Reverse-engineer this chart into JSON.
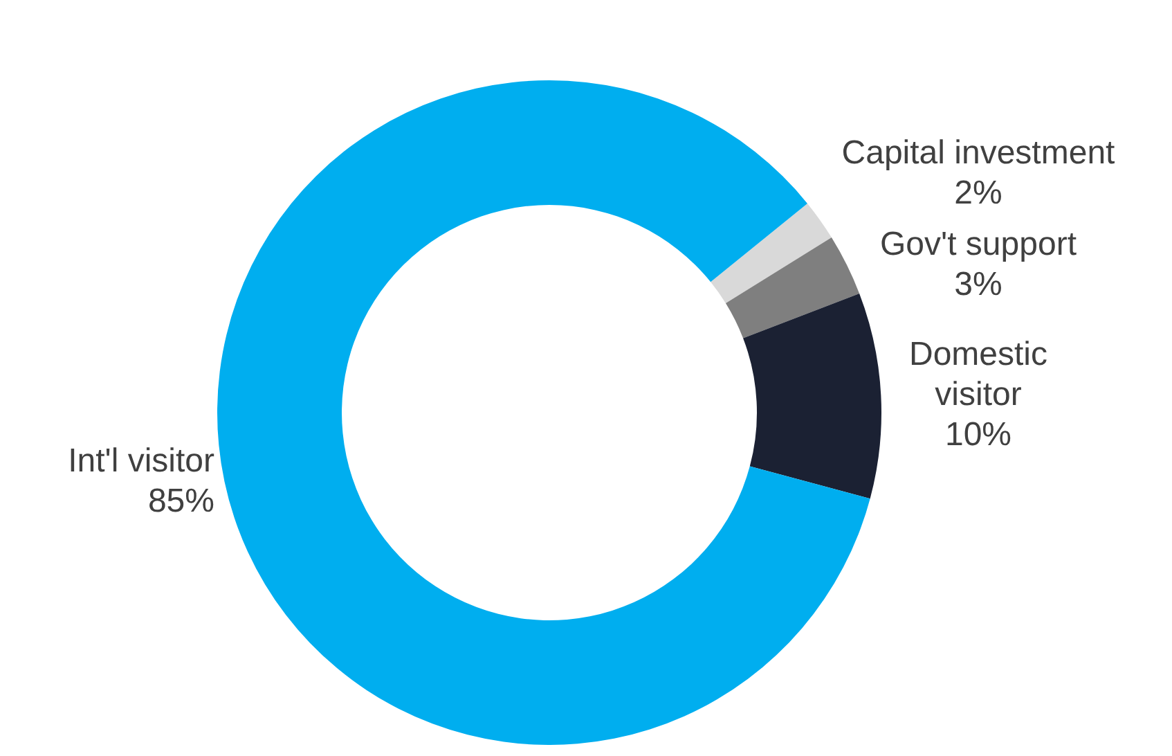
{
  "chart_data": {
    "type": "donut",
    "categories": [
      "Capital investment",
      "Gov't support",
      "Domestic visitor",
      "Int'l visitor"
    ],
    "values": [
      2,
      3,
      10,
      85
    ],
    "value_labels": [
      "2%",
      "3%",
      "10%",
      "85%"
    ],
    "colors": [
      "#d9d9d9",
      "#7f7f7f",
      "#1b2133",
      "#00aeef"
    ]
  }
}
